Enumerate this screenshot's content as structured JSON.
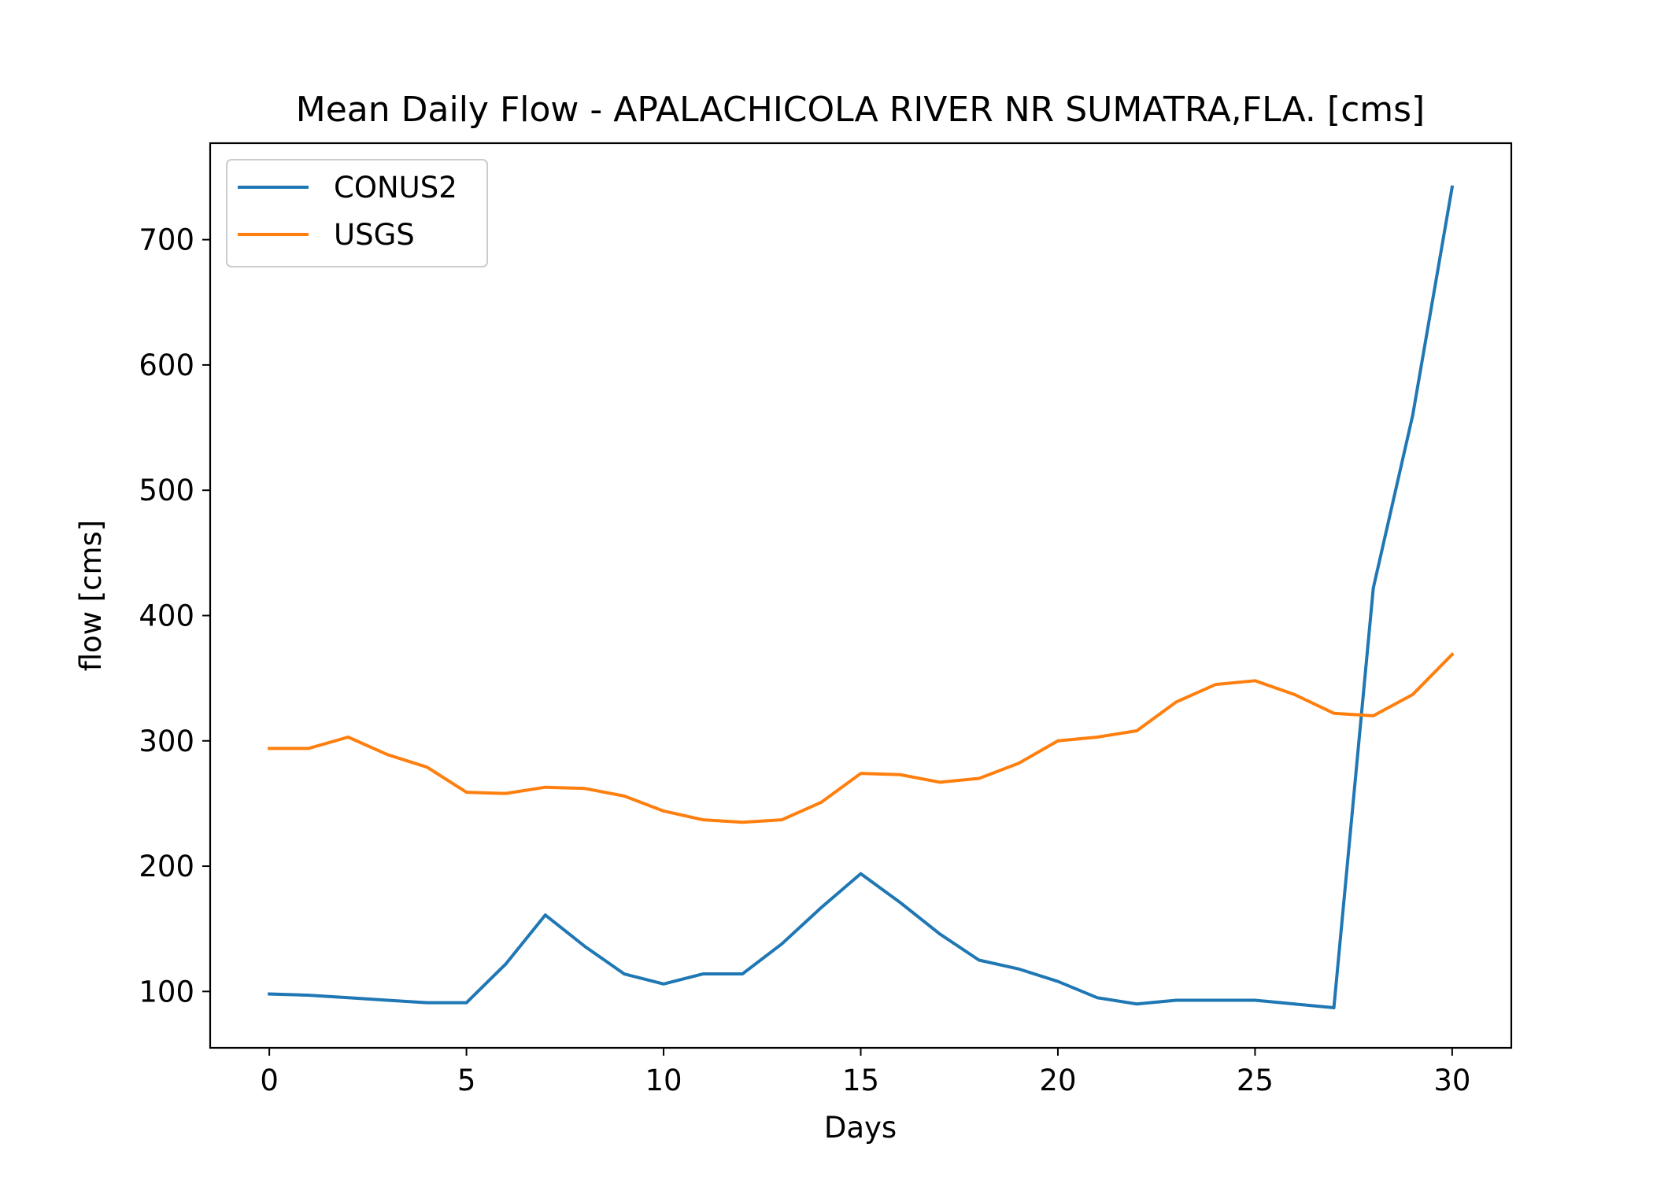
{
  "chart_data": {
    "type": "line",
    "title": "Mean Daily Flow - APALACHICOLA RIVER NR SUMATRA,FLA. [cms]",
    "xlabel": "Days",
    "ylabel": "flow [cms]",
    "xlim": [
      -1.5,
      31.5
    ],
    "ylim": [
      55,
      777
    ],
    "xticks": [
      0,
      5,
      10,
      15,
      20,
      25,
      30
    ],
    "yticks": [
      100,
      200,
      300,
      400,
      500,
      600,
      700
    ],
    "grid": false,
    "legend_position": "top-left",
    "x": [
      0,
      1,
      2,
      3,
      4,
      5,
      6,
      7,
      8,
      9,
      10,
      11,
      12,
      13,
      14,
      15,
      16,
      17,
      18,
      19,
      20,
      21,
      22,
      23,
      24,
      25,
      26,
      27,
      28,
      29,
      30
    ],
    "series": [
      {
        "name": "CONUS2",
        "color": "#1f77b4",
        "values": [
          98,
          97,
          95,
          93,
          91,
          91,
          122,
          161,
          136,
          114,
          106,
          114,
          114,
          138,
          167,
          194,
          171,
          146,
          125,
          118,
          108,
          95,
          90,
          93,
          93,
          93,
          90,
          87,
          422,
          560,
          742
        ]
      },
      {
        "name": "USGS",
        "color": "#ff7f0e",
        "values": [
          294,
          294,
          303,
          289,
          279,
          259,
          258,
          263,
          262,
          256,
          244,
          237,
          235,
          237,
          251,
          274,
          273,
          267,
          270,
          282,
          300,
          303,
          308,
          331,
          345,
          348,
          337,
          322,
          320,
          337,
          369
        ]
      }
    ]
  }
}
